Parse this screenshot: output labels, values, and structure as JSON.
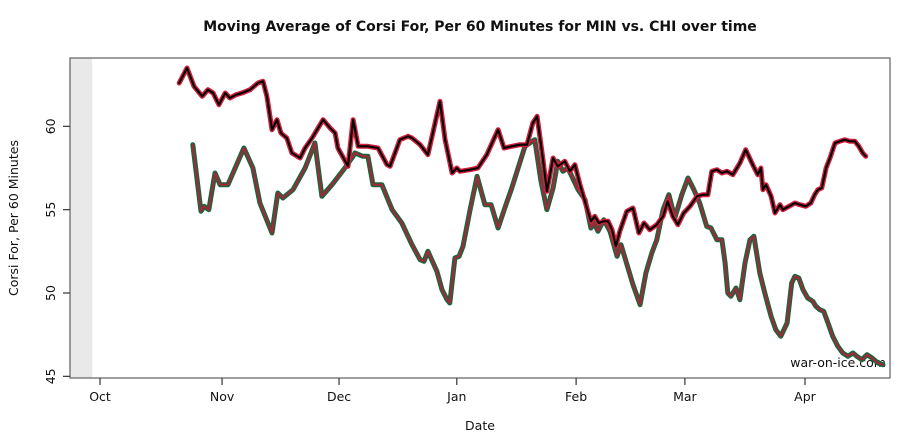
{
  "watermark": "war-on-ice.com",
  "chart_data": {
    "type": "line",
    "title": "Moving Average of Corsi For, Per 60 Minutes for MIN vs. CHI over time",
    "xlabel": "Date",
    "ylabel": "Corsi For, Per 60 Minutes",
    "grid": false,
    "legend": "none",
    "x_axis": {
      "unit": "days since Oct 1",
      "domain": [
        -7.7,
        202.6
      ],
      "ticks": [
        {
          "label": "Oct",
          "day": 0
        },
        {
          "label": "Nov",
          "day": 31.3
        },
        {
          "label": "Dec",
          "day": 61.3
        },
        {
          "label": "Jan",
          "day": 91.5
        },
        {
          "label": "Feb",
          "day": 122.1
        },
        {
          "label": "Mar",
          "day": 150.0
        },
        {
          "label": "Apr",
          "day": 180.8
        }
      ]
    },
    "y_axis": {
      "domain": [
        44.9,
        64.1
      ],
      "ticks": [
        45,
        50,
        55,
        60
      ]
    },
    "shaded_band": {
      "day_start": -7.7,
      "day_end": -2.0,
      "color": "#e9e9e9"
    },
    "box_color": "#6b6b6b",
    "series": [
      {
        "name": "MIN",
        "outline_color": "#15673c",
        "core_color": "#a62639",
        "points": [
          [
            23.8,
            58.9
          ],
          [
            25.9,
            54.9
          ],
          [
            26.7,
            55.2
          ],
          [
            27.9,
            55.0
          ],
          [
            29.5,
            57.2
          ],
          [
            30.8,
            56.5
          ],
          [
            32.8,
            56.5
          ],
          [
            36.9,
            58.7
          ],
          [
            39.2,
            57.5
          ],
          [
            41.0,
            55.4
          ],
          [
            44.1,
            53.6
          ],
          [
            45.6,
            56.0
          ],
          [
            46.9,
            55.7
          ],
          [
            49.5,
            56.2
          ],
          [
            52.6,
            57.5
          ],
          [
            55.1,
            59.0
          ],
          [
            56.9,
            55.8
          ],
          [
            59.5,
            56.5
          ],
          [
            62.8,
            57.5
          ],
          [
            64.6,
            58.1
          ],
          [
            65.4,
            58.4
          ],
          [
            67.4,
            58.2
          ],
          [
            68.7,
            58.2
          ],
          [
            70.0,
            56.5
          ],
          [
            72.3,
            56.5
          ],
          [
            74.9,
            55.0
          ],
          [
            77.4,
            54.2
          ],
          [
            80.0,
            52.9
          ],
          [
            82.1,
            52.0
          ],
          [
            83.1,
            51.9
          ],
          [
            84.1,
            52.5
          ],
          [
            86.4,
            51.3
          ],
          [
            87.7,
            50.2
          ],
          [
            89.0,
            49.6
          ],
          [
            89.7,
            49.4
          ],
          [
            91.0,
            52.1
          ],
          [
            92.1,
            52.2
          ],
          [
            93.1,
            52.8
          ],
          [
            94.9,
            55.0
          ],
          [
            96.7,
            57.0
          ],
          [
            98.7,
            55.3
          ],
          [
            100.3,
            55.3
          ],
          [
            102.1,
            53.9
          ],
          [
            103.8,
            55.1
          ],
          [
            105.6,
            56.3
          ],
          [
            109.0,
            58.8
          ],
          [
            111.5,
            59.2
          ],
          [
            113.1,
            56.7
          ],
          [
            114.6,
            55.0
          ],
          [
            116.2,
            56.3
          ],
          [
            117.4,
            57.9
          ],
          [
            118.7,
            57.3
          ],
          [
            120.0,
            57.5
          ],
          [
            122.6,
            56.2
          ],
          [
            124.4,
            55.6
          ],
          [
            125.9,
            53.9
          ],
          [
            126.7,
            54.2
          ],
          [
            127.7,
            53.7
          ],
          [
            129.2,
            54.4
          ],
          [
            130.8,
            53.7
          ],
          [
            132.6,
            52.2
          ],
          [
            133.6,
            52.9
          ],
          [
            136.7,
            50.5
          ],
          [
            138.5,
            49.3
          ],
          [
            140.0,
            51.2
          ],
          [
            141.5,
            52.4
          ],
          [
            142.8,
            53.2
          ],
          [
            144.4,
            55.0
          ],
          [
            145.9,
            55.9
          ],
          [
            147.4,
            54.5
          ],
          [
            149.2,
            55.9
          ],
          [
            150.8,
            56.9
          ],
          [
            152.3,
            56.2
          ],
          [
            153.8,
            55.4
          ],
          [
            155.6,
            54.0
          ],
          [
            156.7,
            53.9
          ],
          [
            158.2,
            53.2
          ],
          [
            159.5,
            53.2
          ],
          [
            160.3,
            51.8
          ],
          [
            161.0,
            50.0
          ],
          [
            161.8,
            49.8
          ],
          [
            163.1,
            50.3
          ],
          [
            164.1,
            49.6
          ],
          [
            165.4,
            51.8
          ],
          [
            166.7,
            53.2
          ],
          [
            167.7,
            53.4
          ],
          [
            169.2,
            51.2
          ],
          [
            170.5,
            50.0
          ],
          [
            172.1,
            48.6
          ],
          [
            173.3,
            47.8
          ],
          [
            174.6,
            47.4
          ],
          [
            176.2,
            48.2
          ],
          [
            177.4,
            50.6
          ],
          [
            178.2,
            51.0
          ],
          [
            179.2,
            50.9
          ],
          [
            180.3,
            50.2
          ],
          [
            181.5,
            49.7
          ],
          [
            182.8,
            49.5
          ],
          [
            183.6,
            49.2
          ],
          [
            184.6,
            49.0
          ],
          [
            185.6,
            48.9
          ],
          [
            186.7,
            48.2
          ],
          [
            187.9,
            47.4
          ],
          [
            189.2,
            46.8
          ],
          [
            190.5,
            46.4
          ],
          [
            191.8,
            46.2
          ],
          [
            193.1,
            46.4
          ],
          [
            194.1,
            46.2
          ],
          [
            195.4,
            46.0
          ],
          [
            196.7,
            46.3
          ],
          [
            198.0,
            46.1
          ],
          [
            199.5,
            45.8
          ],
          [
            200.8,
            45.7
          ]
        ]
      },
      {
        "name": "CHI",
        "outline_color": "#d2203c",
        "core_color": "#000000",
        "points": [
          [
            20.3,
            62.6
          ],
          [
            22.3,
            63.5
          ],
          [
            24.1,
            62.4
          ],
          [
            26.2,
            61.8
          ],
          [
            27.7,
            62.2
          ],
          [
            29.0,
            62.0
          ],
          [
            30.5,
            61.3
          ],
          [
            32.1,
            62.0
          ],
          [
            33.3,
            61.7
          ],
          [
            34.9,
            61.9
          ],
          [
            36.4,
            62.0
          ],
          [
            38.5,
            62.2
          ],
          [
            40.5,
            62.6
          ],
          [
            41.8,
            62.7
          ],
          [
            42.8,
            61.8
          ],
          [
            44.1,
            59.8
          ],
          [
            45.4,
            60.4
          ],
          [
            46.4,
            59.6
          ],
          [
            47.9,
            59.3
          ],
          [
            49.2,
            58.4
          ],
          [
            51.3,
            58.1
          ],
          [
            52.6,
            58.7
          ],
          [
            54.4,
            59.3
          ],
          [
            57.2,
            60.4
          ],
          [
            59.0,
            59.9
          ],
          [
            60.3,
            59.6
          ],
          [
            61.0,
            58.7
          ],
          [
            63.6,
            57.6
          ],
          [
            64.9,
            60.4
          ],
          [
            66.2,
            58.8
          ],
          [
            68.7,
            58.8
          ],
          [
            71.3,
            58.7
          ],
          [
            73.6,
            57.7
          ],
          [
            74.4,
            57.6
          ],
          [
            76.9,
            59.2
          ],
          [
            79.0,
            59.4
          ],
          [
            80.0,
            59.3
          ],
          [
            82.1,
            58.9
          ],
          [
            84.1,
            58.3
          ],
          [
            87.2,
            61.5
          ],
          [
            88.5,
            59.2
          ],
          [
            90.3,
            57.2
          ],
          [
            91.5,
            57.5
          ],
          [
            92.3,
            57.3
          ],
          [
            94.9,
            57.4
          ],
          [
            96.9,
            57.5
          ],
          [
            99.2,
            58.3
          ],
          [
            102.1,
            59.8
          ],
          [
            103.6,
            58.7
          ],
          [
            105.6,
            58.8
          ],
          [
            107.7,
            58.9
          ],
          [
            109.5,
            58.9
          ],
          [
            111.0,
            60.2
          ],
          [
            112.1,
            60.6
          ],
          [
            113.6,
            58.0
          ],
          [
            114.6,
            56.1
          ],
          [
            116.2,
            58.1
          ],
          [
            117.4,
            57.6
          ],
          [
            119.2,
            57.9
          ],
          [
            120.5,
            57.3
          ],
          [
            121.8,
            57.7
          ],
          [
            123.1,
            56.5
          ],
          [
            125.9,
            54.3
          ],
          [
            126.9,
            54.6
          ],
          [
            127.9,
            54.2
          ],
          [
            129.2,
            54.3
          ],
          [
            130.3,
            54.3
          ],
          [
            131.3,
            53.8
          ],
          [
            132.3,
            52.8
          ],
          [
            133.3,
            53.7
          ],
          [
            135.1,
            54.9
          ],
          [
            136.7,
            55.1
          ],
          [
            138.2,
            53.6
          ],
          [
            139.5,
            54.2
          ],
          [
            141.0,
            53.8
          ],
          [
            142.8,
            54.1
          ],
          [
            144.4,
            54.6
          ],
          [
            145.6,
            55.5
          ],
          [
            146.9,
            54.6
          ],
          [
            148.2,
            54.1
          ],
          [
            149.7,
            54.8
          ],
          [
            151.3,
            55.2
          ],
          [
            153.1,
            55.8
          ],
          [
            154.6,
            55.9
          ],
          [
            155.9,
            55.9
          ],
          [
            156.9,
            57.3
          ],
          [
            158.2,
            57.4
          ],
          [
            159.5,
            57.2
          ],
          [
            160.8,
            57.3
          ],
          [
            162.3,
            57.1
          ],
          [
            164.1,
            57.8
          ],
          [
            165.6,
            58.6
          ],
          [
            167.4,
            57.7
          ],
          [
            168.7,
            57.1
          ],
          [
            169.5,
            57.5
          ],
          [
            170.0,
            56.2
          ],
          [
            170.8,
            56.5
          ],
          [
            172.1,
            55.8
          ],
          [
            173.1,
            54.8
          ],
          [
            174.4,
            55.3
          ],
          [
            175.1,
            55.0
          ],
          [
            176.7,
            55.2
          ],
          [
            178.2,
            55.4
          ],
          [
            179.5,
            55.3
          ],
          [
            181.0,
            55.2
          ],
          [
            182.3,
            55.4
          ],
          [
            183.3,
            55.9
          ],
          [
            184.1,
            56.2
          ],
          [
            185.1,
            56.3
          ],
          [
            186.2,
            57.5
          ],
          [
            187.2,
            58.1
          ],
          [
            188.5,
            59.0
          ],
          [
            189.7,
            59.1
          ],
          [
            191.0,
            59.2
          ],
          [
            192.3,
            59.1
          ],
          [
            193.6,
            59.1
          ],
          [
            194.6,
            58.8
          ],
          [
            195.6,
            58.4
          ],
          [
            196.4,
            58.2
          ]
        ]
      }
    ]
  }
}
